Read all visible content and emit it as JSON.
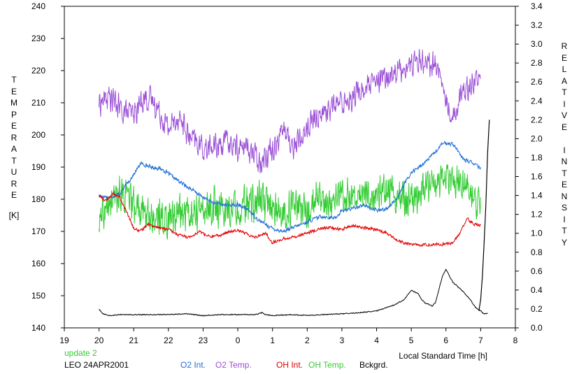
{
  "chart_data": {
    "type": "line",
    "title": "",
    "xlabel": "Local Standard Time [h]",
    "ylabel_left": "TEMPERATURE",
    "ylabel_left_unit": "[K]",
    "ylabel_right": "RELATIVE INTENSITY",
    "x_ticks": [
      "19",
      "20",
      "21",
      "22",
      "23",
      "0",
      "1",
      "2",
      "3",
      "4",
      "5",
      "6",
      "7",
      "8"
    ],
    "y_left_ticks": [
      140,
      150,
      160,
      170,
      180,
      190,
      200,
      210,
      220,
      230,
      240
    ],
    "y_right_ticks": [
      "0.0",
      "0.2",
      "0.4",
      "0.6",
      "0.8",
      "1.0",
      "1.2",
      "1.4",
      "1.6",
      "1.8",
      "2.0",
      "2.2",
      "2.4",
      "2.6",
      "2.8",
      "3.0",
      "3.2",
      "3.4"
    ],
    "xlim": [
      19,
      32
    ],
    "ylim_left": [
      140,
      240
    ],
    "ylim_right": [
      0,
      3.4
    ],
    "grid": false,
    "series": [
      {
        "name": "O2 Int.",
        "axis": "right",
        "color": "#1f6fd6",
        "noise": 0.025,
        "x": [
          20.0,
          20.3,
          20.6,
          20.8,
          21.0,
          21.2,
          21.5,
          21.8,
          22.0,
          22.3,
          22.6,
          23.0,
          23.3,
          23.6,
          24.0,
          24.3,
          24.6,
          25.0,
          25.3,
          25.6,
          26.0,
          26.4,
          26.8,
          27.0,
          27.3,
          27.6,
          28.0,
          28.3,
          28.6,
          28.8,
          29.0,
          29.3,
          29.6,
          29.9,
          30.2,
          30.5,
          30.8,
          31.0
        ],
        "y": [
          1.4,
          1.38,
          1.42,
          1.52,
          1.62,
          1.74,
          1.7,
          1.68,
          1.63,
          1.55,
          1.48,
          1.38,
          1.32,
          1.3,
          1.3,
          1.25,
          1.14,
          1.05,
          1.02,
          1.06,
          1.12,
          1.18,
          1.16,
          1.24,
          1.26,
          1.3,
          1.24,
          1.26,
          1.38,
          1.52,
          1.64,
          1.72,
          1.82,
          1.95,
          1.95,
          1.78,
          1.74,
          1.68
        ]
      },
      {
        "name": "O2 Temp.",
        "axis": "left",
        "color": "#9a4fd6",
        "noise": 5,
        "x": [
          20.0,
          20.3,
          20.6,
          21.0,
          21.3,
          21.6,
          22.0,
          22.3,
          22.6,
          23.0,
          23.3,
          23.6,
          24.0,
          24.3,
          24.6,
          25.0,
          25.3,
          25.6,
          26.0,
          26.3,
          26.6,
          27.0,
          27.3,
          27.6,
          28.0,
          28.3,
          28.6,
          29.0,
          29.3,
          29.6,
          29.8,
          30.0,
          30.2,
          30.5,
          30.8,
          31.0
        ],
        "y": [
          210,
          212,
          208,
          206,
          212,
          210,
          202,
          206,
          199,
          196,
          196,
          198,
          196,
          196,
          192,
          196,
          202,
          196,
          202,
          206,
          208,
          210,
          212,
          214,
          216,
          218,
          220,
          222,
          224,
          222,
          220,
          210,
          206,
          214,
          217,
          218
        ]
      },
      {
        "name": "OH Int.",
        "axis": "right",
        "color": "#e00000",
        "noise": 0.02,
        "x": [
          20.0,
          20.2,
          20.4,
          20.6,
          20.8,
          21.0,
          21.2,
          21.4,
          21.7,
          22.0,
          22.3,
          22.6,
          22.9,
          23.2,
          23.5,
          23.8,
          24.0,
          24.2,
          24.5,
          24.8,
          25.0,
          25.3,
          25.6,
          26.0,
          26.3,
          26.6,
          27.0,
          27.3,
          27.6,
          28.0,
          28.3,
          28.6,
          29.0,
          29.3,
          29.6,
          29.9,
          30.2,
          30.4,
          30.6,
          30.8,
          31.0
        ],
        "y": [
          1.4,
          1.34,
          1.42,
          1.38,
          1.22,
          1.05,
          1.02,
          1.1,
          1.06,
          1.04,
          0.98,
          0.96,
          1.02,
          0.96,
          0.98,
          1.02,
          1.04,
          1.0,
          0.96,
          1.0,
          0.9,
          0.94,
          0.96,
          1.0,
          1.04,
          1.06,
          1.04,
          1.08,
          1.06,
          1.04,
          1.0,
          0.92,
          0.88,
          0.88,
          0.88,
          0.88,
          0.9,
          1.0,
          1.16,
          1.1,
          1.08
        ]
      },
      {
        "name": "OH Temp.",
        "axis": "left",
        "color": "#33cc33",
        "noise": 7,
        "x": [
          20.0,
          20.3,
          20.6,
          21.0,
          21.3,
          21.6,
          22.0,
          22.3,
          22.6,
          23.0,
          23.3,
          23.6,
          24.0,
          24.3,
          24.6,
          25.0,
          25.3,
          25.6,
          26.0,
          26.3,
          26.6,
          27.0,
          27.3,
          27.6,
          28.0,
          28.3,
          28.6,
          29.0,
          29.3,
          29.6,
          30.0,
          30.3,
          30.6,
          30.8,
          31.0
        ],
        "y": [
          172,
          178,
          182,
          178,
          176,
          174,
          174,
          176,
          176,
          176,
          178,
          176,
          178,
          178,
          180,
          178,
          174,
          178,
          176,
          180,
          178,
          182,
          182,
          182,
          180,
          184,
          180,
          180,
          182,
          184,
          186,
          186,
          184,
          180,
          176
        ]
      },
      {
        "name": "Bckgrd.",
        "axis": "right",
        "color": "#000000",
        "noise": 0.006,
        "x": [
          20.0,
          20.1,
          20.3,
          20.6,
          21.0,
          21.5,
          22.0,
          22.5,
          23.0,
          23.5,
          24.0,
          24.5,
          24.7,
          24.8,
          25.0,
          25.5,
          26.0,
          26.5,
          27.0,
          27.5,
          28.0,
          28.5,
          28.8,
          29.0,
          29.2,
          29.3,
          29.4,
          29.5,
          29.6,
          29.7,
          29.9,
          30.0,
          30.1,
          30.2,
          30.3,
          30.5,
          30.7,
          30.8,
          30.9,
          31.0,
          31.05,
          31.1,
          31.15,
          31.2
        ],
        "y": [
          0.2,
          0.15,
          0.13,
          0.14,
          0.14,
          0.14,
          0.14,
          0.15,
          0.13,
          0.14,
          0.14,
          0.14,
          0.16,
          0.14,
          0.13,
          0.14,
          0.13,
          0.14,
          0.15,
          0.16,
          0.18,
          0.24,
          0.3,
          0.4,
          0.36,
          0.3,
          0.26,
          0.25,
          0.23,
          0.27,
          0.55,
          0.62,
          0.55,
          0.48,
          0.45,
          0.38,
          0.3,
          0.24,
          0.2,
          0.18,
          0.16,
          0.15,
          0.15,
          0.16
        ]
      }
    ],
    "extra_series": {
      "name": "Bckgrd. rise",
      "axis": "right",
      "color": "#000000",
      "x": [
        30.95,
        31.0,
        31.05,
        31.1,
        31.15,
        31.2,
        31.25
      ],
      "y": [
        0.18,
        0.3,
        0.55,
        0.9,
        1.3,
        1.85,
        2.2
      ]
    }
  },
  "footer": {
    "update_label": "update 2",
    "station_label": "LEO 24APR2001",
    "legend": [
      {
        "label": "O2 Int.",
        "color": "#1f6fd6"
      },
      {
        "label": "O2 Temp.",
        "color": "#9a4fd6"
      },
      {
        "label": "OH Int.",
        "color": "#e00000"
      },
      {
        "label": "OH Temp.",
        "color": "#33cc33"
      },
      {
        "label": "Bckgrd.",
        "color": "#000000"
      }
    ]
  }
}
